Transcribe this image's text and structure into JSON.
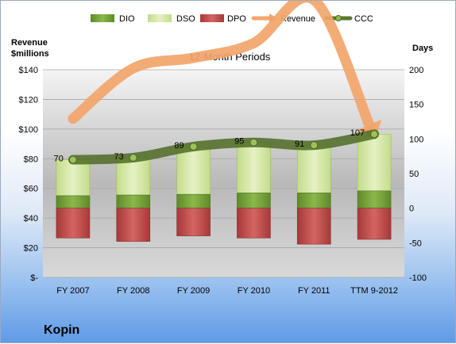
{
  "company": "Kopin",
  "chart_data": {
    "type": "bar",
    "title": "12-Month Periods",
    "categories": [
      "FY 2007",
      "FY 2008",
      "FY 2009",
      "FY 2010",
      "FY 2011",
      "TTM 9-2012"
    ],
    "y_left": {
      "label_line1": "Revenue",
      "label_line2": "$millions",
      "range": [
        0,
        140
      ],
      "ticks": [
        "$-",
        "$20",
        "$40",
        "$60",
        "$80",
        "$100",
        "$120",
        "$140"
      ]
    },
    "y_right": {
      "label": "Days",
      "range": [
        -100,
        200
      ],
      "ticks": [
        "-100",
        "-50",
        "0",
        "50",
        "100",
        "150",
        "200"
      ]
    },
    "legend": {
      "position": "top",
      "items": [
        {
          "name": "DIO",
          "color": "#7aa23a"
        },
        {
          "name": "DSO",
          "color": "#d6e6a6"
        },
        {
          "name": "DPO",
          "color": "#c04e4c"
        },
        {
          "name": "Revenue",
          "color": "#f2a56a"
        },
        {
          "name": "CCC",
          "color": "#5a7a2c"
        }
      ]
    },
    "series": [
      {
        "name": "DIO",
        "axis": "days",
        "values": [
          18,
          19,
          20,
          22,
          22,
          25
        ]
      },
      {
        "name": "DSO",
        "axis": "days",
        "values": [
          52,
          54,
          69,
          73,
          69,
          82
        ]
      },
      {
        "name": "DPO",
        "axis": "days",
        "values": [
          -43,
          -48,
          -40,
          -43,
          -52,
          -45
        ]
      },
      {
        "name": "Revenue",
        "axis": "dollars",
        "values": [
          107,
          141,
          148,
          158,
          187,
          95
        ]
      },
      {
        "name": "CCC",
        "axis": "days",
        "values": [
          70,
          73,
          89,
          95,
          91,
          107
        ]
      }
    ],
    "ccc_labels": [
      "70",
      "73",
      "89",
      "95",
      "91",
      "107"
    ]
  }
}
